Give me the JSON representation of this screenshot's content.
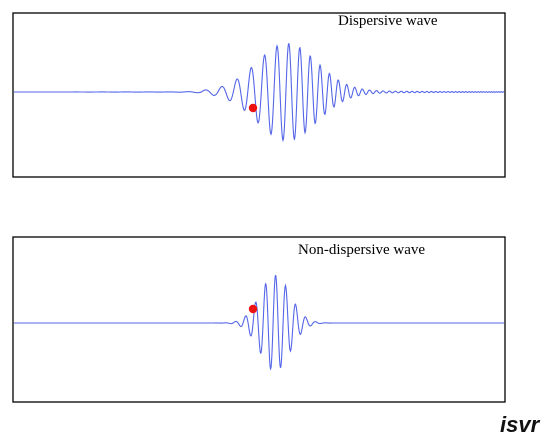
{
  "panels": [
    {
      "label": "Dispersive wave"
    },
    {
      "label": "Non-dispersive wave"
    }
  ],
  "logo": "isvr"
}
